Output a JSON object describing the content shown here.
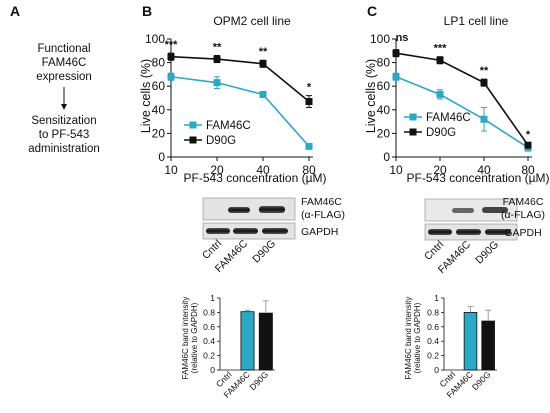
{
  "flow": {
    "letter": "A",
    "top": [
      "Functional",
      "FAM46C",
      "expression"
    ],
    "bottom": [
      "Sensitization",
      "to PF-543",
      "administration"
    ]
  },
  "panels": [
    {
      "letter": "B",
      "title": "OPM2 cell line",
      "xlabel": "PF-543 concentration (µM)",
      "ylabel": "Live cells (%)",
      "x_ticks": [
        "10",
        "20",
        "40",
        "80"
      ],
      "y_ticks": [
        "0",
        "20",
        "40",
        "60",
        "80",
        "100"
      ],
      "significance": [
        "***",
        "**",
        "**",
        "*"
      ],
      "legend": [
        "FAM46C",
        "D90G"
      ],
      "blot_labels": [
        "FAM46C",
        "(α-FLAG)",
        "GAPDH"
      ],
      "lanes": [
        "Cntrl",
        "FAM46C",
        "D90G"
      ],
      "bar_ylabel": [
        "FAM46C band intensity",
        "(relative to GAPDH)"
      ],
      "bar_y_ticks": [
        "0",
        "0.2",
        "0.4",
        "0.6",
        "0.8",
        "1"
      ]
    },
    {
      "letter": "C",
      "title": "LP1 cell line",
      "xlabel": "PF-543 concentration (µM)",
      "ylabel": "Live cells (%)",
      "x_ticks": [
        "10",
        "20",
        "40",
        "80"
      ],
      "y_ticks": [
        "0",
        "20",
        "40",
        "60",
        "80",
        "100"
      ],
      "significance": [
        "ns",
        "***",
        "**",
        "*"
      ],
      "legend": [
        "FAM46C",
        "D90G"
      ],
      "blot_labels": [
        "FAM46C",
        "(α-FLAG)",
        "GAPDH"
      ],
      "lanes": [
        "Cntrl",
        "FAM46C",
        "D90G"
      ],
      "bar_ylabel": [
        "FAM46C band intensity",
        "(relative to GAPDH)"
      ],
      "bar_y_ticks": [
        "0",
        "0.2",
        "0.4",
        "0.6",
        "0.8",
        "1"
      ]
    }
  ],
  "colors": {
    "fam46c": "#2aa8c4",
    "d90g": "#111111",
    "cntrl": "#ffffff"
  },
  "chart_data": [
    {
      "type": "line",
      "x": [
        10,
        20,
        40,
        80
      ],
      "ylim": [
        0,
        100
      ],
      "series": [
        {
          "name": "FAM46C",
          "values": [
            68,
            63,
            53,
            9
          ],
          "errors": [
            3,
            5,
            2,
            2
          ]
        },
        {
          "name": "D90G",
          "values": [
            85,
            83,
            79,
            47
          ],
          "errors": [
            3,
            3,
            3,
            5
          ]
        }
      ]
    },
    {
      "type": "bar",
      "categories": [
        "Cntrl",
        "FAM46C",
        "D90G"
      ],
      "values": [
        0,
        0.81,
        0.79
      ],
      "errors": [
        0,
        0.02,
        0.17
      ],
      "ylim": [
        0,
        1
      ]
    },
    {
      "type": "line",
      "x": [
        10,
        20,
        40,
        80
      ],
      "ylim": [
        0,
        100
      ],
      "series": [
        {
          "name": "FAM46C",
          "values": [
            68,
            53,
            32,
            8
          ],
          "errors": [
            3,
            4,
            10,
            3
          ]
        },
        {
          "name": "D90G",
          "values": [
            88,
            82,
            63,
            10
          ],
          "errors": [
            3,
            3,
            3,
            2
          ]
        }
      ]
    },
    {
      "type": "bar",
      "categories": [
        "Cntrl",
        "FAM46C",
        "D90G"
      ],
      "values": [
        0,
        0.8,
        0.68
      ],
      "errors": [
        0,
        0.08,
        0.15
      ],
      "ylim": [
        0,
        1
      ]
    }
  ]
}
